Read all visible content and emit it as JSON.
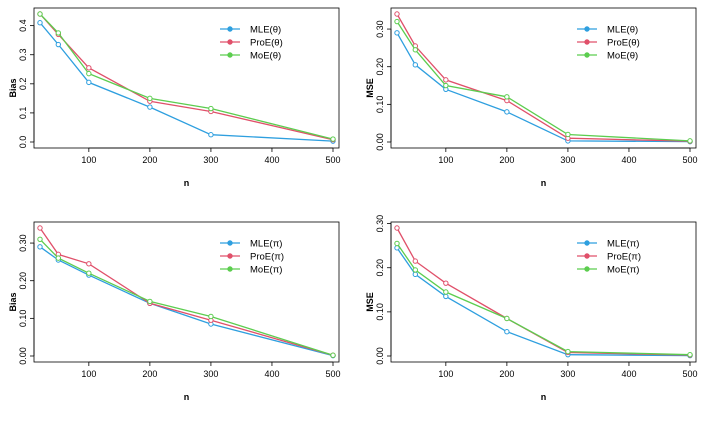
{
  "chart_data": [
    {
      "type": "line",
      "xlabel": "n",
      "ylabel": "Bias",
      "x": [
        20,
        50,
        100,
        200,
        300,
        500
      ],
      "x_ticks": [
        100,
        200,
        300,
        400,
        500
      ],
      "y_ticks": [
        0.0,
        0.1,
        0.2,
        0.3,
        0.4
      ],
      "y_tick_labels": [
        "0.0",
        "0.1",
        "0.2",
        "0.3",
        "0.4"
      ],
      "xlim": [
        20,
        500
      ],
      "ylim": [
        0.0,
        0.44
      ],
      "legend_position": "top-right",
      "series": [
        {
          "name": "MLE(θ)",
          "color": "#2e9fdf",
          "values": [
            0.41,
            0.335,
            0.205,
            0.12,
            0.025,
            0.003
          ]
        },
        {
          "name": "ProE(θ)",
          "color": "#e0506a",
          "values": [
            0.44,
            0.37,
            0.255,
            0.14,
            0.105,
            0.008
          ]
        },
        {
          "name": "MoE(θ)",
          "color": "#5ccd4f",
          "values": [
            0.44,
            0.375,
            0.235,
            0.15,
            0.115,
            0.01
          ]
        }
      ]
    },
    {
      "type": "line",
      "xlabel": "n",
      "ylabel": "MSE",
      "x": [
        20,
        50,
        100,
        200,
        300,
        500
      ],
      "x_ticks": [
        100,
        200,
        300,
        400,
        500
      ],
      "y_ticks": [
        0.0,
        0.1,
        0.2,
        0.3
      ],
      "y_tick_labels": [
        "0.00",
        "0.10",
        "0.20",
        "0.30"
      ],
      "xlim": [
        20,
        500
      ],
      "ylim": [
        0.0,
        0.34
      ],
      "legend_position": "top-right",
      "series": [
        {
          "name": "MLE(θ)",
          "color": "#2e9fdf",
          "values": [
            0.29,
            0.205,
            0.14,
            0.08,
            0.003,
            0.001
          ]
        },
        {
          "name": "ProE(θ)",
          "color": "#e0506a",
          "values": [
            0.34,
            0.255,
            0.165,
            0.11,
            0.01,
            0.002
          ]
        },
        {
          "name": "MoE(θ)",
          "color": "#5ccd4f",
          "values": [
            0.32,
            0.245,
            0.15,
            0.12,
            0.02,
            0.003
          ]
        }
      ]
    },
    {
      "type": "line",
      "xlabel": "n",
      "ylabel": "Bias",
      "x": [
        20,
        50,
        100,
        200,
        300,
        500
      ],
      "x_ticks": [
        100,
        200,
        300,
        400,
        500
      ],
      "y_ticks": [
        0.0,
        0.1,
        0.2,
        0.3
      ],
      "y_tick_labels": [
        "0.00",
        "0.10",
        "0.20",
        "0.30"
      ],
      "xlim": [
        20,
        500
      ],
      "ylim": [
        0.0,
        0.34
      ],
      "legend_position": "top-right",
      "series": [
        {
          "name": "MLE(π)",
          "color": "#2e9fdf",
          "values": [
            0.29,
            0.255,
            0.215,
            0.14,
            0.085,
            0.001
          ]
        },
        {
          "name": "ProE(π)",
          "color": "#e0506a",
          "values": [
            0.34,
            0.27,
            0.245,
            0.14,
            0.095,
            0.002
          ]
        },
        {
          "name": "MoE(π)",
          "color": "#5ccd4f",
          "values": [
            0.31,
            0.26,
            0.22,
            0.145,
            0.105,
            0.002
          ]
        }
      ]
    },
    {
      "type": "line",
      "xlabel": "n",
      "ylabel": "MSE",
      "x": [
        20,
        50,
        100,
        200,
        300,
        500
      ],
      "x_ticks": [
        100,
        200,
        300,
        400,
        500
      ],
      "y_ticks": [
        0.0,
        0.1,
        0.2,
        0.3
      ],
      "y_tick_labels": [
        "0.00",
        "0.10",
        "0.20",
        "0.30"
      ],
      "xlim": [
        20,
        500
      ],
      "ylim": [
        0.0,
        0.29
      ],
      "legend_position": "top-right",
      "series": [
        {
          "name": "MLE(π)",
          "color": "#2e9fdf",
          "values": [
            0.245,
            0.185,
            0.135,
            0.055,
            0.003,
            0.001
          ]
        },
        {
          "name": "ProE(π)",
          "color": "#e0506a",
          "values": [
            0.29,
            0.215,
            0.165,
            0.085,
            0.008,
            0.002
          ]
        },
        {
          "name": "MoE(π)",
          "color": "#5ccd4f",
          "values": [
            0.255,
            0.195,
            0.145,
            0.085,
            0.01,
            0.003
          ]
        }
      ]
    }
  ]
}
